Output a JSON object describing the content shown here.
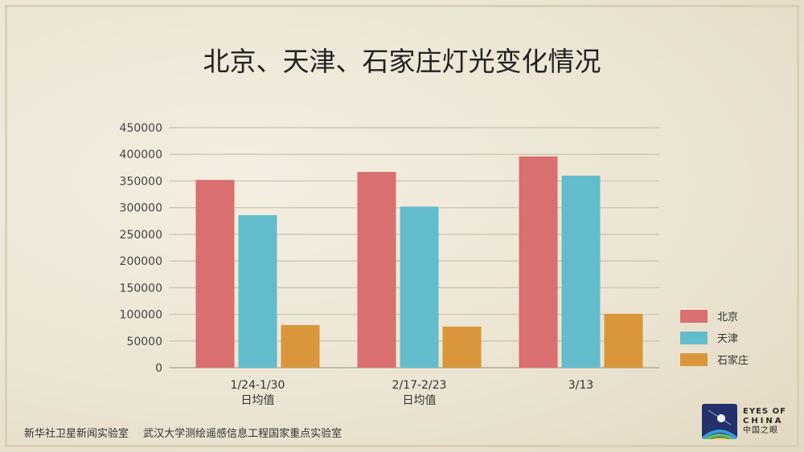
{
  "chart_data": {
    "type": "bar",
    "title": "北京、天津、石家庄灯光变化情况",
    "categories": [
      [
        "1/24-1/30",
        "日均值"
      ],
      [
        "2/17-2/23",
        "日均值"
      ],
      [
        "3/13"
      ]
    ],
    "series": [
      {
        "name": "北京",
        "color": "#d96f6f",
        "values": [
          352000,
          367000,
          396000
        ]
      },
      {
        "name": "天津",
        "color": "#63bccb",
        "values": [
          286000,
          302000,
          360000
        ]
      },
      {
        "name": "石家庄",
        "color": "#d9963a",
        "values": [
          80000,
          77000,
          101000
        ]
      }
    ],
    "ylim": [
      0,
      450000
    ],
    "yticks": [
      0,
      50000,
      100000,
      150000,
      200000,
      250000,
      300000,
      350000,
      400000,
      450000
    ],
    "xlabel": "",
    "ylabel": "",
    "grid": true,
    "legend": "right"
  },
  "footer": {
    "credits": [
      "新华社卫星新闻实验室",
      "武汉大学测绘遥感信息工程国家重点实验室"
    ]
  },
  "logo": {
    "line1": "EYES OF",
    "line2": "CHINA",
    "line3": "中国之眼"
  }
}
